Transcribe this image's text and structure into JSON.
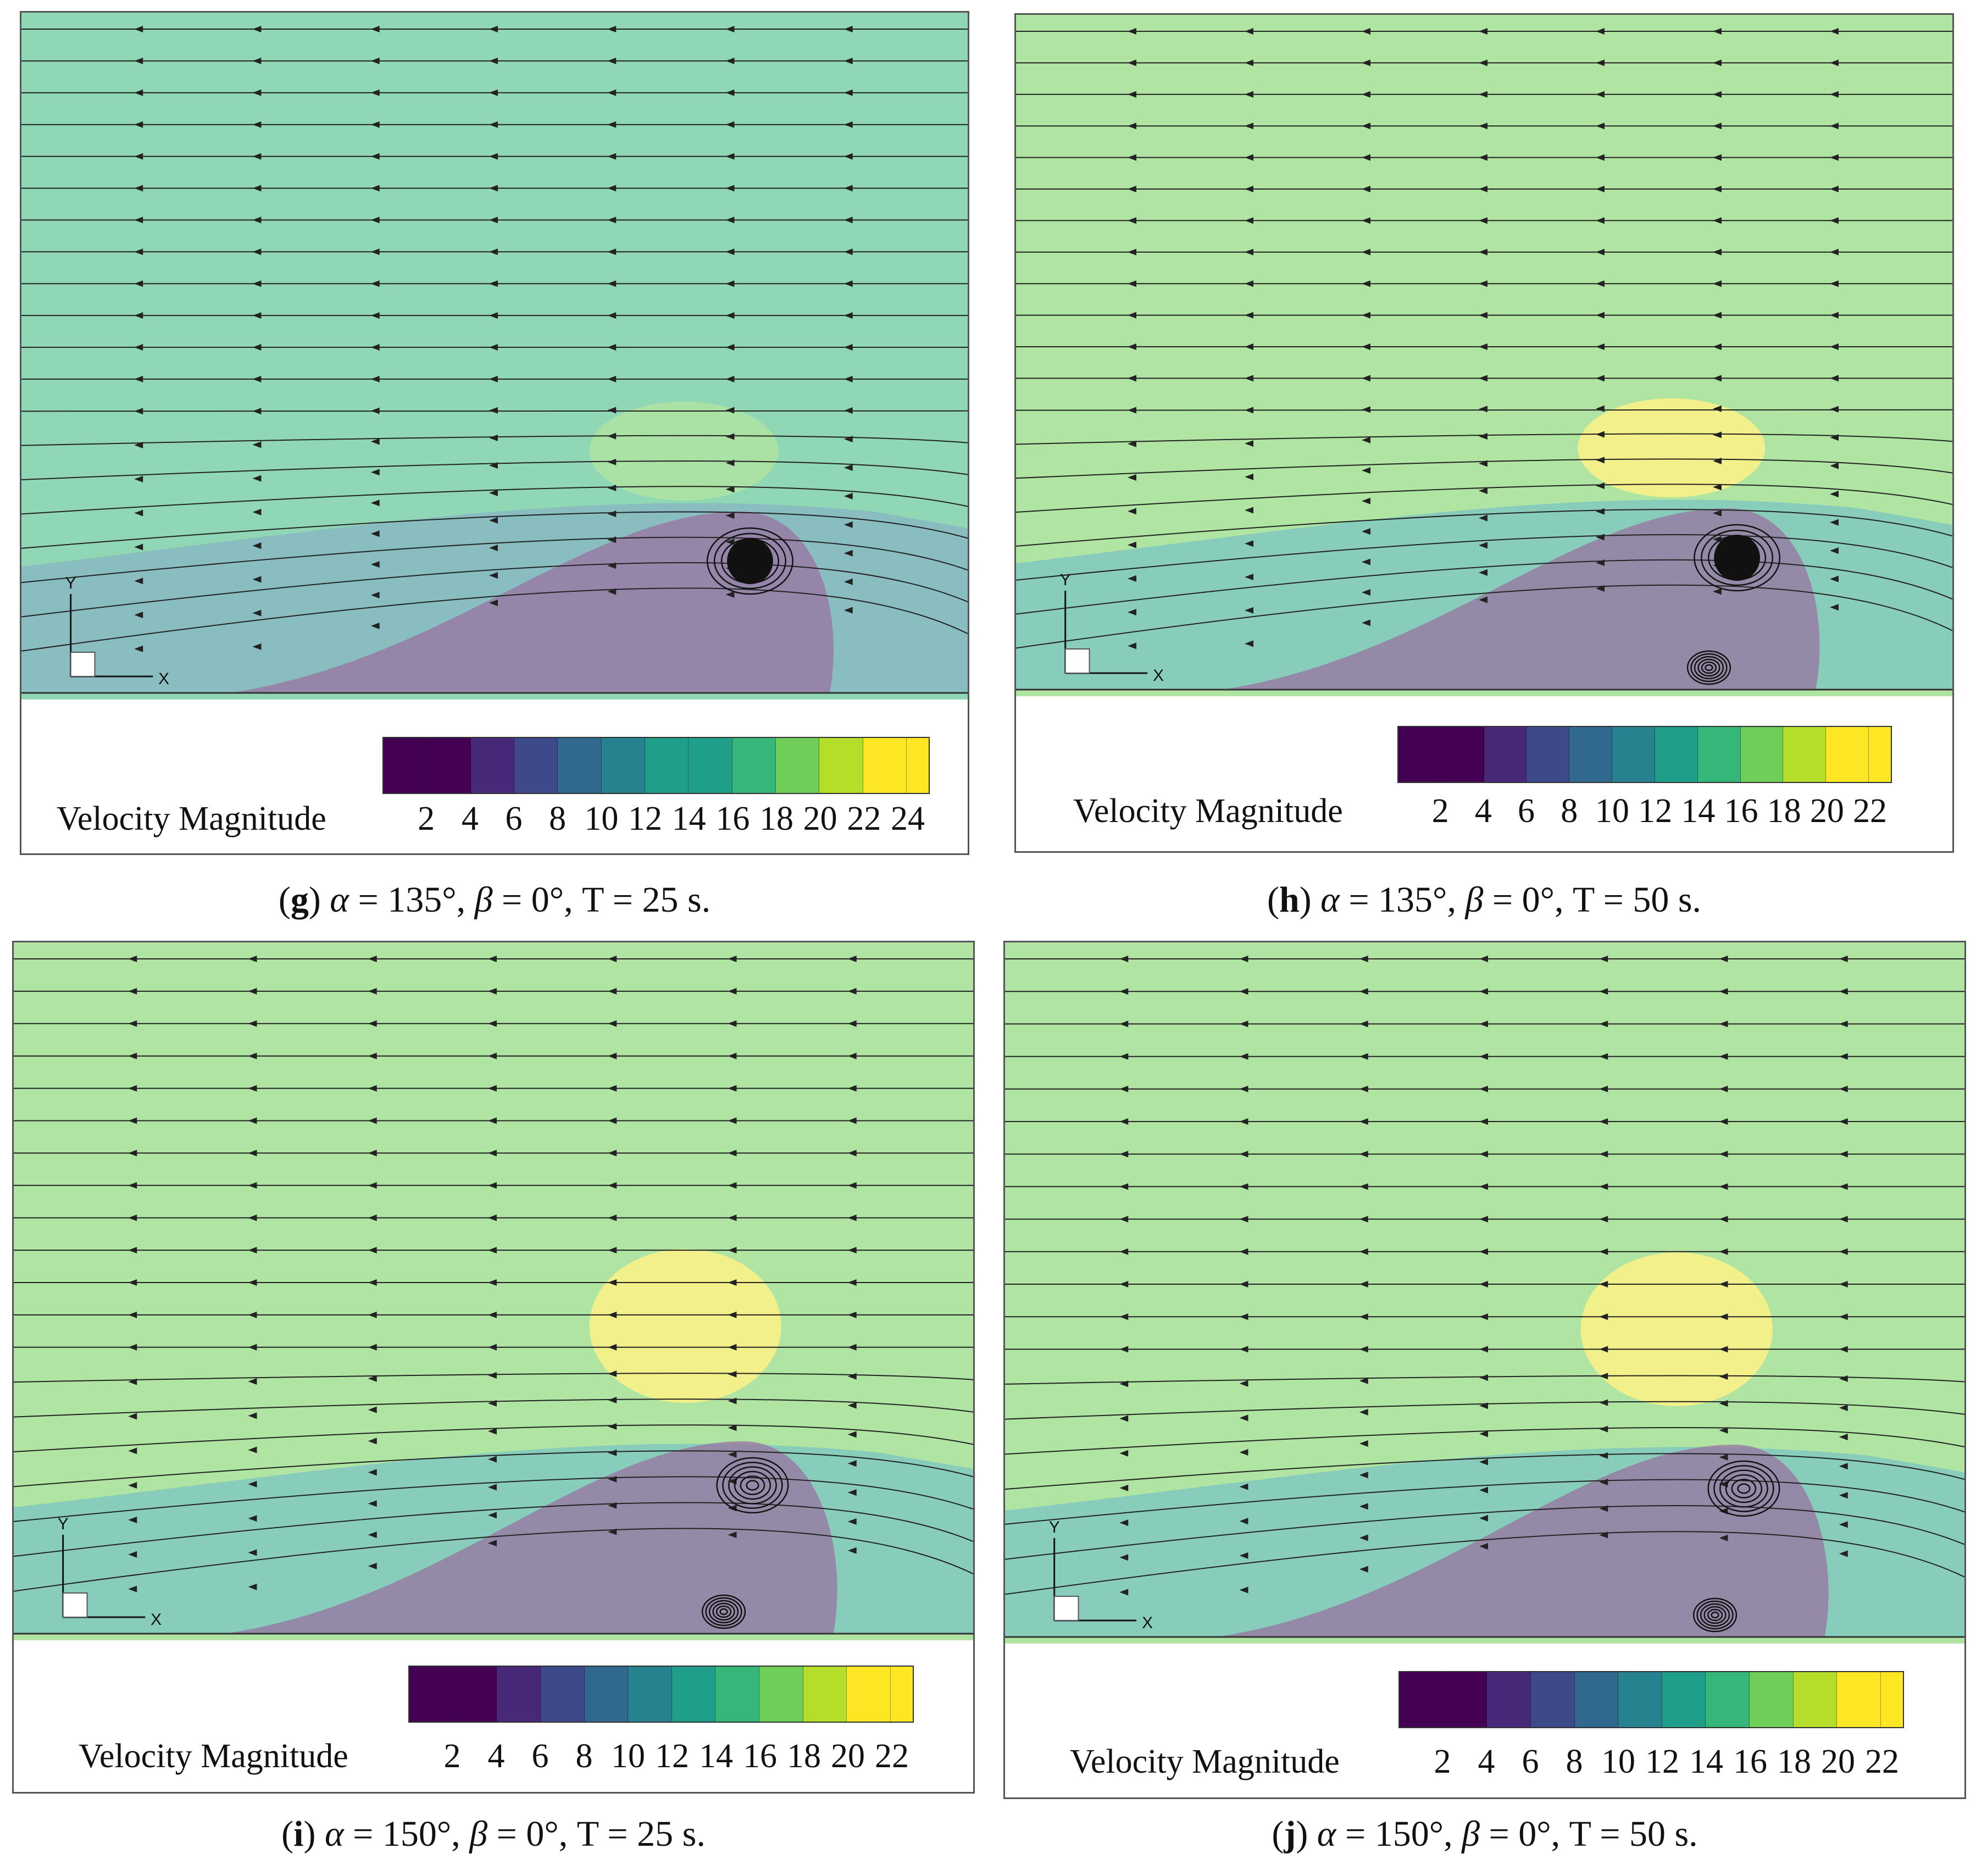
{
  "palette": [
    "#440154",
    "#482878",
    "#3e4989",
    "#31688e",
    "#26828e",
    "#1f9e89",
    "#35b779",
    "#6ece58",
    "#b5de2b",
    "#fde725"
  ],
  "axis_labels": {
    "x": "X",
    "y": "Y"
  },
  "chart_data": [
    {
      "id": "g",
      "type": "heatmap",
      "title": "(g) α = 135°, β = 0°, T = 25 s.",
      "caption": {
        "letter": "g",
        "alpha": "135°",
        "beta": "0°",
        "T": "25 s."
      },
      "colorbar": {
        "label": "Velocity Magnitude",
        "ticks": [
          "2",
          "4",
          "6",
          "8",
          "10",
          "12",
          "14",
          "16",
          "18",
          "20",
          "22",
          "24"
        ],
        "min": 1,
        "max": 25
      },
      "free_stream_level": 16,
      "vortices": 1
    },
    {
      "id": "h",
      "type": "heatmap",
      "title": "(h) α = 135°, β = 0°, T = 50 s.",
      "caption": {
        "letter": "h",
        "alpha": "135°",
        "beta": "0°",
        "T": "50 s."
      },
      "colorbar": {
        "label": "Velocity Magnitude",
        "ticks": [
          "2",
          "4",
          "6",
          "8",
          "10",
          "12",
          "14",
          "16",
          "18",
          "20",
          "22"
        ],
        "min": 1,
        "max": 23
      },
      "free_stream_level": 18,
      "vortices": 2
    },
    {
      "id": "i",
      "type": "heatmap",
      "title": "(i) α = 150°, β = 0°, T = 25 s.",
      "caption": {
        "letter": "i",
        "alpha": "150°",
        "beta": "0°",
        "T": "25 s."
      },
      "colorbar": {
        "label": "Velocity Magnitude",
        "ticks": [
          "2",
          "4",
          "6",
          "8",
          "10",
          "12",
          "14",
          "16",
          "18",
          "20",
          "22"
        ],
        "min": 1,
        "max": 23
      },
      "free_stream_level": 18,
      "vortices": 2
    },
    {
      "id": "j",
      "type": "heatmap",
      "title": "(j) α = 150°, β = 0°, T = 50 s.",
      "caption": {
        "letter": "j",
        "alpha": "150°",
        "beta": "0°",
        "T": "50 s."
      },
      "colorbar": {
        "label": "Velocity Magnitude",
        "ticks": [
          "2",
          "4",
          "6",
          "8",
          "10",
          "12",
          "14",
          "16",
          "18",
          "20",
          "22"
        ],
        "min": 1,
        "max": 23
      },
      "free_stream_level": 18,
      "vortices": 2
    }
  ]
}
